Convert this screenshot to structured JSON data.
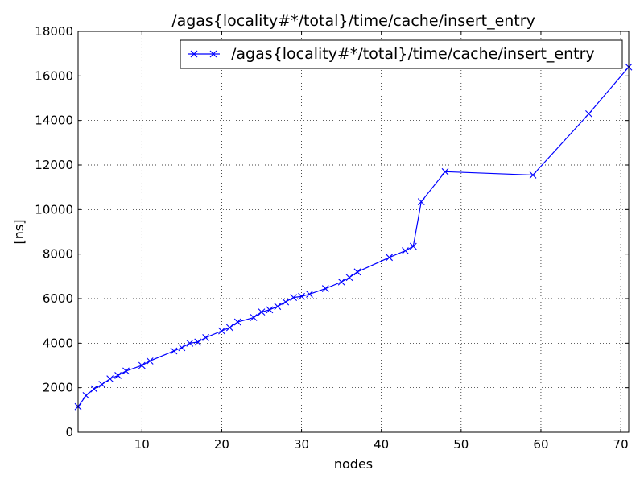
{
  "chart_data": {
    "type": "line",
    "title": "/agas{locality#*/total}/time/cache/insert_entry",
    "xlabel": "nodes",
    "ylabel": "[ns]",
    "xlim": [
      2,
      71
    ],
    "ylim": [
      0,
      18000
    ],
    "x_ticks": [
      10,
      20,
      30,
      40,
      50,
      60,
      70
    ],
    "y_ticks": [
      0,
      2000,
      4000,
      6000,
      8000,
      10000,
      12000,
      14000,
      16000,
      18000
    ],
    "grid": true,
    "legend_position": "top-right",
    "colors": {
      "series": "#0000ff"
    },
    "marker": "x",
    "series": [
      {
        "name": "/agas{locality#*/total}/time/cache/insert_entry",
        "x": [
          2,
          3,
          4,
          5,
          6,
          7,
          8,
          10,
          11,
          14,
          15,
          16,
          17,
          18,
          20,
          21,
          22,
          24,
          25,
          26,
          27,
          28,
          29,
          30,
          31,
          33,
          35,
          36,
          37,
          41,
          43,
          44,
          45,
          48,
          59,
          66,
          71
        ],
        "y": [
          1150,
          1650,
          1950,
          2150,
          2400,
          2550,
          2750,
          3000,
          3200,
          3650,
          3800,
          4000,
          4050,
          4250,
          4550,
          4700,
          4950,
          5150,
          5400,
          5500,
          5650,
          5850,
          6050,
          6100,
          6200,
          6450,
          6750,
          6950,
          7200,
          7850,
          8150,
          8350,
          10350,
          11700,
          11550,
          14300,
          16400
        ]
      }
    ]
  }
}
